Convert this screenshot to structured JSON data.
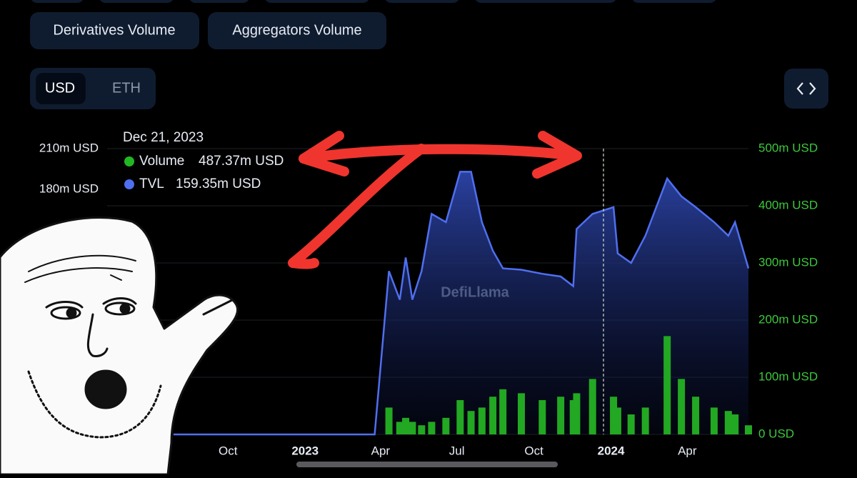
{
  "buttons": {
    "row": [
      "Derivatives Volume",
      "Aggregators Volume"
    ],
    "currency": [
      "USD",
      "ETH"
    ]
  },
  "tooltip": {
    "date": "Dec 21, 2023",
    "items": [
      {
        "label": "Volume",
        "value": "487.37m USD"
      },
      {
        "label": "TVL",
        "value": "159.35m USD"
      }
    ]
  },
  "watermark": "DefiLlama",
  "chart_data": {
    "type": "area",
    "x": [
      "2022-07-28",
      "2022-10-01",
      "2023-01-01",
      "2023-03-25",
      "2023-04-11",
      "2023-04-24",
      "2023-05-01",
      "2023-05-09",
      "2023-05-20",
      "2023-06-01",
      "2023-06-18",
      "2023-07-05",
      "2023-07-18",
      "2023-07-31",
      "2023-08-13",
      "2023-08-25",
      "2023-09-16",
      "2023-10-11",
      "2023-11-02",
      "2023-11-17",
      "2023-11-21",
      "2023-12-10",
      "2024-01-04",
      "2024-01-09",
      "2024-01-25",
      "2024-02-11",
      "2024-03-08",
      "2024-03-25",
      "2024-04-11",
      "2024-05-03",
      "2024-05-20",
      "2024-05-28",
      "2024-06-13"
    ],
    "series": [
      {
        "name": "TVL",
        "color": "#4f6ff0",
        "axis": "y",
        "values": [
          0,
          0,
          0,
          0,
          120,
          99,
          130,
          99,
          120,
          162,
          156,
          193,
          193,
          156,
          135,
          122,
          121,
          118,
          116,
          109,
          151,
          162,
          167,
          133,
          126,
          146,
          188,
          175,
          167,
          156,
          146,
          156,
          122
        ]
      },
      {
        "name": "Volume",
        "color": "#22a822",
        "axis": "y2",
        "values": [
          0,
          0,
          0,
          0,
          47,
          22,
          29,
          22,
          16,
          22,
          29,
          60,
          41,
          47,
          66,
          79,
          72,
          60,
          66,
          60,
          72,
          97,
          66,
          47,
          35,
          47,
          172,
          97,
          66,
          47,
          41,
          35,
          16
        ]
      }
    ],
    "xlim": [
      "2022-07-28",
      "2024-06-13"
    ],
    "xticks": [
      {
        "value": "2022-10-01",
        "label": "Oct"
      },
      {
        "value": "2023-01-01",
        "label": "2023"
      },
      {
        "value": "2023-04-01",
        "label": "Apr"
      },
      {
        "value": "2023-07-01",
        "label": "Jul"
      },
      {
        "value": "2023-10-01",
        "label": "Oct"
      },
      {
        "value": "2024-01-01",
        "label": "2024"
      },
      {
        "value": "2024-04-01",
        "label": "Apr"
      }
    ],
    "ylim": [
      0,
      210
    ],
    "yticks": [
      {
        "value": 210,
        "label": "210m USD"
      },
      {
        "value": 180,
        "label": "180m USD"
      }
    ],
    "y2lim": [
      0,
      500
    ],
    "y2ticks": [
      {
        "value": 500,
        "label": "500m USD"
      },
      {
        "value": 400,
        "label": "400m USD"
      },
      {
        "value": 300,
        "label": "300m USD"
      },
      {
        "value": 200,
        "label": "200m USD"
      },
      {
        "value": 100,
        "label": "100m USD"
      },
      {
        "value": 0,
        "label": "0 USD"
      }
    ],
    "grid": true
  }
}
